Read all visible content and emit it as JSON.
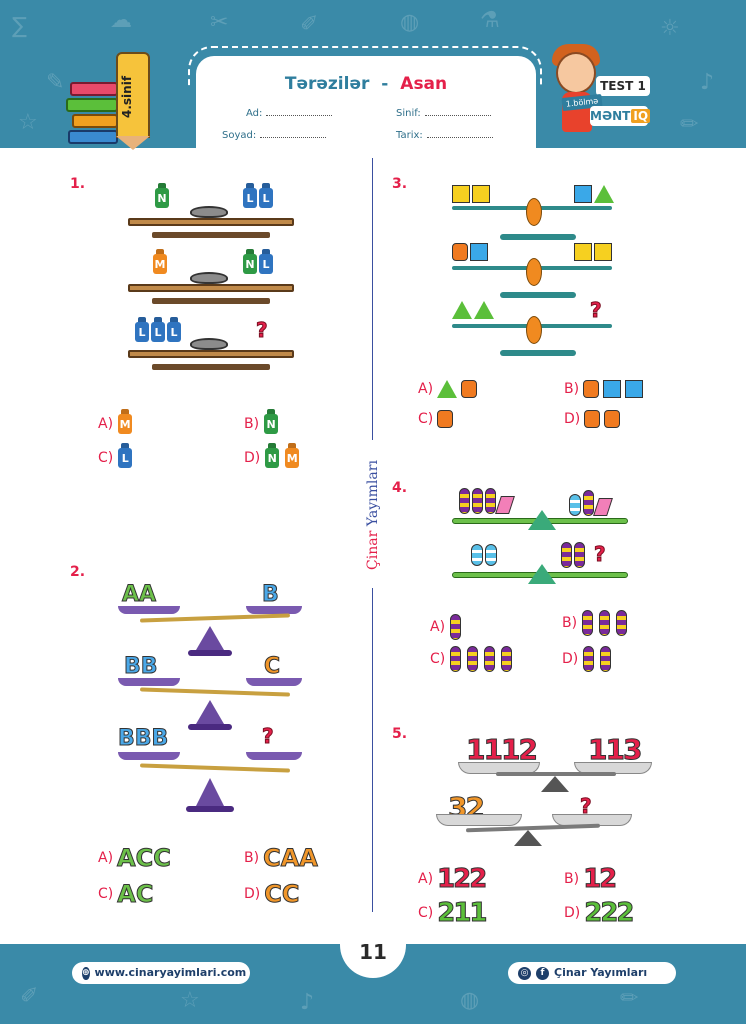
{
  "header": {
    "title": "Tərəzilər",
    "separator": "-",
    "level": "Asan",
    "grade": "4.sinif",
    "test_label": "TEST 1",
    "section_label": "1.bölmə",
    "subject_label": "MƏNT",
    "subject_suffix": "IQ",
    "fields": {
      "name": "Ad:",
      "surname": "Soyad:",
      "class": "Sinif:",
      "date": "Tarix:"
    }
  },
  "publisher_vertical": {
    "part1": "Çinar",
    "part2": "Yayımları"
  },
  "questions": [
    {
      "number": "1.",
      "rows": [
        {
          "left": [
            "N"
          ],
          "right": [
            "L",
            "L"
          ]
        },
        {
          "left": [
            "M"
          ],
          "right": [
            "N",
            "L"
          ]
        },
        {
          "left": [
            "L",
            "L",
            "L"
          ],
          "right": [
            "?"
          ]
        }
      ],
      "options": [
        {
          "letter": "A)",
          "value": [
            "M"
          ]
        },
        {
          "letter": "B)",
          "value": [
            "N"
          ]
        },
        {
          "letter": "C)",
          "value": [
            "L"
          ]
        },
        {
          "letter": "D)",
          "value": [
            "N",
            "M"
          ]
        }
      ]
    },
    {
      "number": "2.",
      "rows": [
        {
          "left": "AA",
          "right": "B"
        },
        {
          "left": "BB",
          "right": "C"
        },
        {
          "left": "BBB",
          "right": "?"
        }
      ],
      "options": [
        {
          "letter": "A)",
          "value": "ACC"
        },
        {
          "letter": "B)",
          "value": "CAA"
        },
        {
          "letter": "C)",
          "value": "AC"
        },
        {
          "letter": "D)",
          "value": "CC"
        }
      ]
    },
    {
      "number": "3.",
      "options": [
        {
          "letter": "A)"
        },
        {
          "letter": "B)"
        },
        {
          "letter": "C)"
        },
        {
          "letter": "D)"
        }
      ]
    },
    {
      "number": "4.",
      "options": [
        {
          "letter": "A)"
        },
        {
          "letter": "B)"
        },
        {
          "letter": "C)"
        },
        {
          "letter": "D)"
        }
      ]
    },
    {
      "number": "5.",
      "rows": [
        {
          "left": "1112",
          "right": "113"
        },
        {
          "left": "32",
          "right": "?"
        }
      ],
      "options": [
        {
          "letter": "A)",
          "value": "122"
        },
        {
          "letter": "B)",
          "value": "12"
        },
        {
          "letter": "C)",
          "value": "211"
        },
        {
          "letter": "D)",
          "value": "222"
        }
      ]
    }
  ],
  "question_mark": "?",
  "footer": {
    "website": "www.cinaryayimlari.com",
    "page_number": "11",
    "social": "Çinar Yayımları"
  },
  "colors": {
    "band": "#3a8aa8",
    "accent_red": "#e4204a",
    "accent_blue": "#3a4fa0",
    "weight_green": "#2e9a45",
    "weight_blue": "#2f74c0",
    "weight_orange": "#f08a20",
    "letter_green": "#6cc04a",
    "letter_blue": "#4aa8e8",
    "letter_orange": "#f0962a"
  }
}
